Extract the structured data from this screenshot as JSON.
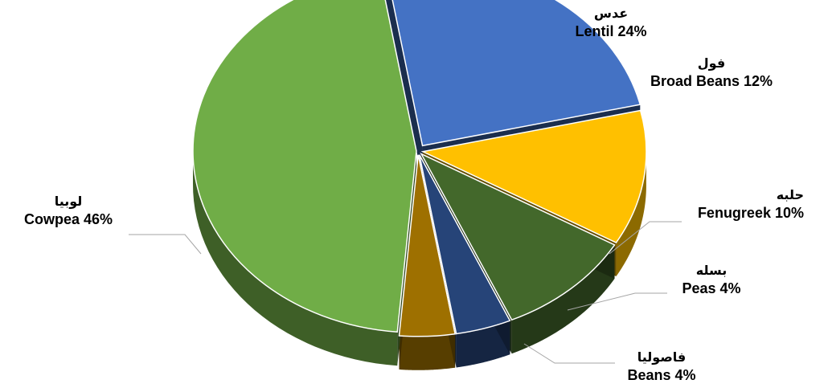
{
  "chart_data": {
    "type": "pie",
    "style": "3d-exploded",
    "slices": [
      {
        "label_ar": "عدس",
        "label": "Lentil 24%",
        "value": 24,
        "color": "#4472C4"
      },
      {
        "label_ar": "فول",
        "label": "Broad Beans 12%",
        "value": 12,
        "color": "#FFC000"
      },
      {
        "label_ar": "حلبه",
        "label": "Fenugreek 10%",
        "value": 10,
        "color": "#43682B"
      },
      {
        "label_ar": "بسله",
        "label": "Peas 4%",
        "value": 4,
        "color": "#264478"
      },
      {
        "label_ar": "فاصوليا",
        "label": "Beans 4%",
        "value": 4,
        "color": "#9E7000"
      },
      {
        "label_ar": "لوبيا",
        "label": "Cowpea 46%",
        "value": 46,
        "color": "#70AD47"
      }
    ]
  }
}
